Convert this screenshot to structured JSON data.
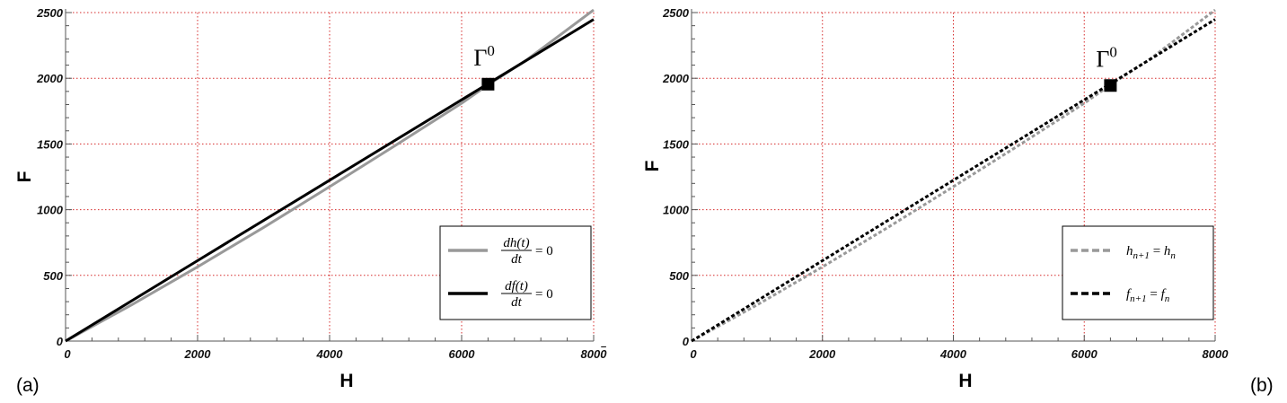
{
  "labels": {
    "panel_a": "(a)",
    "panel_b": "(b)"
  },
  "colors": {
    "grid": "#d62b2b",
    "gray_curve": "#999999",
    "black_curve": "#000000"
  },
  "chart_data": [
    {
      "type": "line",
      "panel": "(a)",
      "xlabel": "H",
      "ylabel": "F",
      "xlim": [
        0,
        8000
      ],
      "ylim": [
        0,
        2500
      ],
      "x_ticks": [
        "0",
        "2000",
        "4000",
        "6000",
        "8000"
      ],
      "y_ticks": [
        "0",
        "500",
        "1000",
        "1500",
        "2000",
        "2500"
      ],
      "grid": true,
      "grid_style": "dotted",
      "legend_position": "bottom-right",
      "series": [
        {
          "name": "dh(t)/dt = 0",
          "style": "solid",
          "color": "#999999",
          "x": [
            0,
            1000,
            2000,
            3000,
            4000,
            5000,
            6000,
            6400,
            7000,
            8000
          ],
          "y": [
            0,
            275,
            565,
            865,
            1175,
            1490,
            1810,
            1950,
            2145,
            2520
          ]
        },
        {
          "name": "df(t)/dt = 0",
          "style": "solid",
          "color": "#000000",
          "x": [
            0,
            2000,
            4000,
            6000,
            6400,
            8000
          ],
          "y": [
            0,
            612,
            1224,
            1836,
            1958,
            2448
          ]
        }
      ],
      "legend": [
        {
          "num": "dh(t)",
          "den": "dt",
          "rhs": "= 0"
        },
        {
          "num": "df(t)",
          "den": "dt",
          "rhs": "= 0"
        }
      ],
      "annotations": [
        {
          "text": "Γ",
          "sup": "0",
          "x": 6400,
          "y": 1955,
          "marker": "square"
        }
      ]
    },
    {
      "type": "line",
      "panel": "(b)",
      "xlabel": "H",
      "ylabel": "F",
      "xlim": [
        0,
        8000
      ],
      "ylim": [
        0,
        2500
      ],
      "x_ticks": [
        "0",
        "2000",
        "4000",
        "6000",
        "8000"
      ],
      "y_ticks": [
        "0",
        "500",
        "1000",
        "1500",
        "2000",
        "2500"
      ],
      "grid": true,
      "grid_style": "dotted",
      "legend_position": "bottom-right",
      "series": [
        {
          "name": "h_{n+1} = h_n",
          "style": "dashed",
          "color": "#999999",
          "x": [
            0,
            1000,
            2000,
            3000,
            4000,
            5000,
            6000,
            6400,
            7000,
            8000
          ],
          "y": [
            0,
            275,
            565,
            865,
            1175,
            1490,
            1810,
            1950,
            2145,
            2520
          ]
        },
        {
          "name": "f_{n+1} = f_n",
          "style": "dashed",
          "color": "#000000",
          "x": [
            0,
            2000,
            4000,
            6000,
            6400,
            8000
          ],
          "y": [
            0,
            612,
            1224,
            1836,
            1958,
            2448
          ]
        }
      ],
      "legend": [
        {
          "base": "h",
          "sub": "n+1",
          "eq": " = ",
          "base2": "h",
          "sub2": "n"
        },
        {
          "base": "f",
          "sub": "n+1",
          "eq": " = ",
          "base2": "f",
          "sub2": "n"
        }
      ],
      "annotations": [
        {
          "text": "Γ",
          "sup": "0",
          "x": 6400,
          "y": 1945,
          "marker": "square"
        }
      ]
    }
  ]
}
